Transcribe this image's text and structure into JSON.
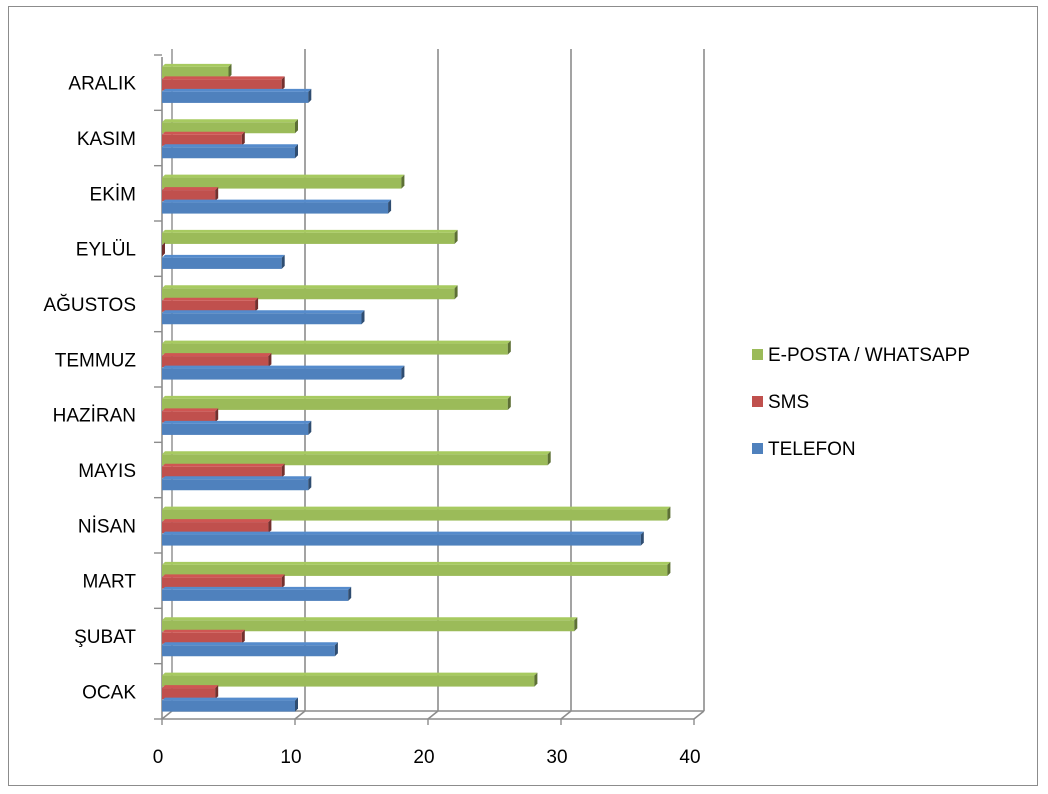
{
  "chart_data": {
    "type": "bar",
    "orientation": "horizontal",
    "style": "3d-clustered",
    "categories": [
      "OCAK",
      "ŞUBAT",
      "MART",
      "NİSAN",
      "MAYIS",
      "HAZİRAN",
      "TEMMUZ",
      "AĞUSTOS",
      "EYLÜL",
      "EKİM",
      "KASIM",
      "ARALIK"
    ],
    "series": [
      {
        "name": "TELEFON",
        "color": "#4f81bd",
        "values": [
          10,
          13,
          14,
          36,
          11,
          11,
          18,
          15,
          9,
          17,
          10,
          11
        ]
      },
      {
        "name": "SMS",
        "color": "#c0504d",
        "values": [
          4,
          6,
          9,
          8,
          9,
          4,
          8,
          7,
          0,
          4,
          6,
          9
        ]
      },
      {
        "name": "E-POSTA / WHATSAPP",
        "color": "#9bbb59",
        "values": [
          28,
          31,
          38,
          38,
          29,
          26,
          26,
          22,
          22,
          18,
          10,
          5
        ]
      }
    ],
    "xlim": [
      0,
      40
    ],
    "xticks": [
      "0",
      "10",
      "20",
      "30",
      "40"
    ],
    "grid": true,
    "legend_position": "right"
  }
}
